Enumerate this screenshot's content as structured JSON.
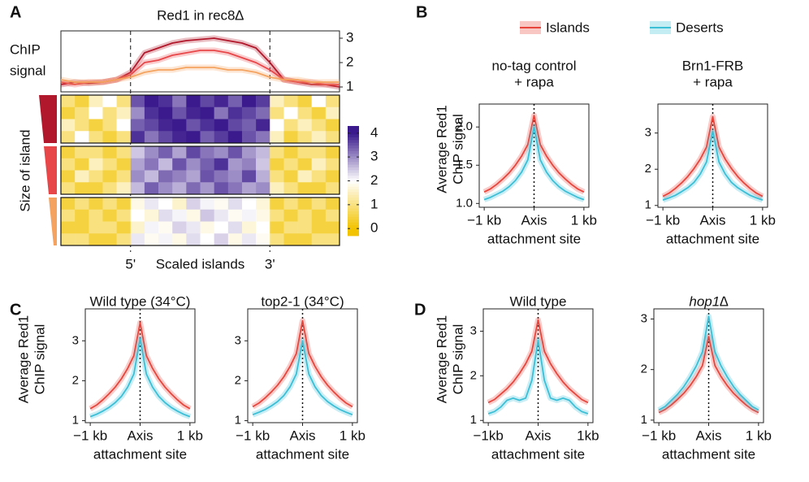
{
  "panel_labels": [
    "A",
    "B",
    "C",
    "D"
  ],
  "chart_data": [
    {
      "type": "line",
      "title": "Red1 in rec8∆",
      "ylabel": [
        "ChIP",
        "signal"
      ],
      "ylim": [
        0.8,
        3.3
      ],
      "yticks": [
        1,
        2,
        3
      ],
      "y_axis_side": "right",
      "series": [
        {
          "color": "#b2182b",
          "values": [
            1.1,
            1.2,
            1.15,
            1.2,
            1.3,
            1.6,
            2.4,
            2.6,
            2.8,
            2.9,
            2.95,
            3.0,
            2.9,
            2.8,
            2.6,
            2.0,
            1.3,
            1.2,
            1.1,
            1.1,
            1.0
          ]
        },
        {
          "color": "#e8474a",
          "values": [
            1.2,
            1.1,
            1.2,
            1.2,
            1.3,
            1.5,
            2.0,
            2.1,
            2.3,
            2.4,
            2.5,
            2.5,
            2.4,
            2.2,
            2.0,
            1.7,
            1.3,
            1.2,
            1.2,
            1.1,
            1.1
          ]
        },
        {
          "color": "#f4a460",
          "values": [
            1.3,
            1.2,
            1.2,
            1.2,
            1.3,
            1.4,
            1.6,
            1.7,
            1.7,
            1.8,
            1.8,
            1.8,
            1.7,
            1.7,
            1.6,
            1.4,
            1.3,
            1.3,
            1.2,
            1.2,
            1.2
          ]
        }
      ]
    },
    {
      "type": "heatmap",
      "ylabel": "Size of island",
      "x_labels": [
        "5'",
        "Scaled islands",
        "3'"
      ],
      "zlim": [
        -0.3,
        4.3
      ],
      "zticks": [
        0,
        1,
        2,
        3,
        4
      ],
      "color_stops": [
        {
          "value": 0,
          "color": "#f2c300"
        },
        {
          "value": 2,
          "color": "#ffffff"
        },
        {
          "value": 4,
          "color": "#3a1a8c"
        }
      ],
      "values": [
        [
          [
            1,
            0.5,
            1.5,
            2,
            1,
            3.5,
            4,
            3.8,
            3.2,
            4,
            3.6,
            3.9,
            3.4,
            4,
            3.7,
            1.5,
            1,
            0.5,
            2,
            1
          ],
          [
            0.5,
            1,
            2,
            1,
            1.5,
            3,
            3.8,
            4,
            3.5,
            3.9,
            4,
            3.2,
            3.8,
            3.6,
            3.3,
            1,
            2,
            1,
            0.5,
            1.5
          ],
          [
            1.5,
            1,
            0.5,
            1,
            2,
            3.4,
            3.6,
            3.9,
            4,
            3.5,
            3.8,
            4,
            3.6,
            3.4,
            3.9,
            2,
            1,
            1.5,
            1,
            0.5
          ],
          [
            1,
            2,
            1,
            0.5,
            1,
            3.8,
            3.2,
            3.6,
            3.9,
            4,
            3.4,
            3.7,
            4,
            3.5,
            3.2,
            1.5,
            0.5,
            1,
            1.5,
            1
          ]
        ],
        [
          [
            0.5,
            1,
            1,
            0.5,
            1,
            2.5,
            3,
            3.4,
            2.8,
            3.6,
            3.2,
            3,
            3.5,
            2.9,
            2.6,
            1,
            0.5,
            1,
            1,
            0.5
          ],
          [
            1,
            0.5,
            1.5,
            1,
            0.5,
            2.8,
            3.2,
            2.6,
            3.5,
            3,
            3.4,
            3.8,
            2.9,
            3.1,
            2.5,
            0.5,
            1,
            0.5,
            1.5,
            1
          ],
          [
            0.5,
            1.5,
            1,
            0.5,
            1,
            3,
            2.6,
            3.3,
            3.1,
            2.8,
            3.5,
            3.2,
            3,
            3.6,
            2.7,
            1,
            0.5,
            1.5,
            1,
            0.5
          ],
          [
            1,
            0.5,
            0.5,
            1,
            1.5,
            2.6,
            3.4,
            3,
            2.7,
            3.3,
            2.9,
            3.5,
            3.2,
            2.8,
            3,
            1.5,
            1,
            0.5,
            0.5,
            1
          ]
        ],
        [
          [
            0.5,
            1,
            0.5,
            1,
            0.5,
            1.8,
            2.2,
            2,
            1.6,
            2.4,
            2.1,
            1.9,
            2.3,
            2,
            1.7,
            0.5,
            1,
            0.5,
            1,
            0.5
          ],
          [
            1,
            0.5,
            1,
            0.5,
            1,
            2,
            1.7,
            2.3,
            2.1,
            1.8,
            2.5,
            2.2,
            1.9,
            2.1,
            1.8,
            1,
            0.5,
            1,
            0.5,
            1
          ],
          [
            0.5,
            0.5,
            1,
            1,
            0.5,
            1.6,
            2.1,
            1.9,
            2.4,
            2.2,
            1.8,
            2,
            2.3,
            1.7,
            2,
            0.5,
            1,
            1,
            0.5,
            0.5
          ],
          [
            1,
            1,
            0.5,
            0.5,
            1,
            2.2,
            1.9,
            2.1,
            1.8,
            2.3,
            2,
            2.4,
            1.8,
            2.2,
            1.9,
            1,
            0.5,
            0.5,
            1,
            1
          ]
        ]
      ]
    },
    {
      "type": "line",
      "title": [
        "no-tag control",
        "+ rapa"
      ],
      "ylabel": [
        "Average Red1",
        "ChIP signal"
      ],
      "xlabel": "attachment site",
      "x": [
        -1,
        -0.875,
        -0.75,
        -0.625,
        -0.5,
        -0.375,
        -0.25,
        -0.125,
        0,
        0.125,
        0.25,
        0.375,
        0.5,
        0.625,
        0.75,
        0.875,
        1
      ],
      "xlim": [
        -1.1,
        1.1
      ],
      "xticks": [
        {
          "value": -1,
          "label": "−1 kb"
        },
        {
          "value": 0,
          "label": "Axis"
        },
        {
          "value": 1,
          "label": "1 kb"
        }
      ],
      "ylim": [
        0.95,
        2.3
      ],
      "yticks": [
        {
          "value": 1,
          "label": "1.0"
        },
        {
          "value": 1.5,
          "label": "1.5"
        },
        {
          "value": 2,
          "label": "2.0"
        }
      ],
      "series": [
        {
          "name": "Islands",
          "color": "#e8453c",
          "values": [
            1.15,
            1.19,
            1.25,
            1.32,
            1.4,
            1.5,
            1.62,
            1.77,
            2.15,
            1.77,
            1.62,
            1.5,
            1.4,
            1.32,
            1.25,
            1.19,
            1.15
          ]
        },
        {
          "name": "Deserts",
          "color": "#3bbfd6",
          "values": [
            1.05,
            1.08,
            1.12,
            1.16,
            1.22,
            1.3,
            1.41,
            1.57,
            2.0,
            1.57,
            1.41,
            1.3,
            1.22,
            1.16,
            1.12,
            1.08,
            1.05
          ]
        }
      ]
    },
    {
      "type": "line",
      "title": [
        "Brn1-FRB",
        "+ rapa"
      ],
      "xlabel": "attachment site",
      "x": [
        -1,
        -0.875,
        -0.75,
        -0.625,
        -0.5,
        -0.375,
        -0.25,
        -0.125,
        0,
        0.125,
        0.25,
        0.375,
        0.5,
        0.625,
        0.75,
        0.875,
        1
      ],
      "xlim": [
        -1.1,
        1.1
      ],
      "xticks": [
        {
          "value": -1,
          "label": "−1 kb"
        },
        {
          "value": 0,
          "label": "Axis"
        },
        {
          "value": 1,
          "label": "1 kb"
        }
      ],
      "ylim": [
        0.95,
        3.8
      ],
      "yticks": [
        1,
        2,
        3
      ],
      "series": [
        {
          "name": "Islands",
          "color": "#e8453c",
          "values": [
            1.25,
            1.34,
            1.47,
            1.62,
            1.8,
            2.02,
            2.28,
            2.61,
            3.45,
            2.61,
            2.28,
            2.02,
            1.8,
            1.62,
            1.47,
            1.34,
            1.25
          ]
        },
        {
          "name": "Deserts",
          "color": "#3bbfd6",
          "values": [
            1.15,
            1.21,
            1.28,
            1.38,
            1.49,
            1.64,
            1.87,
            2.2,
            3.05,
            2.2,
            1.87,
            1.64,
            1.49,
            1.38,
            1.28,
            1.21,
            1.15
          ]
        }
      ]
    },
    {
      "type": "line",
      "title": [
        "Wild type (34°C)"
      ],
      "ylabel": [
        "Average Red1",
        "ChIP signal"
      ],
      "xlabel": "attachment site",
      "x": [
        -1,
        -0.875,
        -0.75,
        -0.625,
        -0.5,
        -0.375,
        -0.25,
        -0.125,
        0,
        0.125,
        0.25,
        0.375,
        0.5,
        0.625,
        0.75,
        0.875,
        1
      ],
      "xlim": [
        -1.1,
        1.1
      ],
      "xticks": [
        {
          "value": -1,
          "label": "−1 kb"
        },
        {
          "value": 0,
          "label": "Axis"
        },
        {
          "value": 1,
          "label": "1 kb"
        }
      ],
      "ylim": [
        0.95,
        3.8
      ],
      "yticks": [
        1,
        2,
        3
      ],
      "series": [
        {
          "name": "Islands",
          "color": "#e8453c",
          "values": [
            1.3,
            1.39,
            1.52,
            1.67,
            1.84,
            2.05,
            2.31,
            2.63,
            3.45,
            2.63,
            2.31,
            2.05,
            1.84,
            1.67,
            1.52,
            1.39,
            1.3
          ]
        },
        {
          "name": "Deserts",
          "color": "#3bbfd6",
          "values": [
            1.1,
            1.16,
            1.24,
            1.33,
            1.45,
            1.61,
            1.84,
            2.17,
            3.05,
            2.17,
            1.84,
            1.61,
            1.45,
            1.33,
            1.24,
            1.16,
            1.1
          ]
        }
      ]
    },
    {
      "type": "line",
      "title": [
        "top2-1 (34°C)"
      ],
      "xlabel": "attachment site",
      "x": [
        -1,
        -0.875,
        -0.75,
        -0.625,
        -0.5,
        -0.375,
        -0.25,
        -0.125,
        0,
        0.125,
        0.25,
        0.375,
        0.5,
        0.625,
        0.75,
        0.875,
        1
      ],
      "xlim": [
        -1.1,
        1.1
      ],
      "xticks": [
        {
          "value": -1,
          "label": "−1 kb"
        },
        {
          "value": 0,
          "label": "Axis"
        },
        {
          "value": 1,
          "label": "1 kb"
        }
      ],
      "ylim": [
        0.95,
        3.8
      ],
      "yticks": [
        1,
        2,
        3
      ],
      "series": [
        {
          "name": "Islands",
          "color": "#e8453c",
          "values": [
            1.35,
            1.44,
            1.57,
            1.72,
            1.89,
            2.1,
            2.36,
            2.68,
            3.5,
            2.68,
            2.36,
            2.1,
            1.89,
            1.72,
            1.57,
            1.44,
            1.35
          ]
        },
        {
          "name": "Deserts",
          "color": "#3bbfd6",
          "values": [
            1.15,
            1.21,
            1.28,
            1.37,
            1.48,
            1.63,
            1.85,
            2.17,
            3.0,
            2.17,
            1.85,
            1.63,
            1.48,
            1.37,
            1.28,
            1.21,
            1.15
          ]
        }
      ]
    },
    {
      "type": "line",
      "title": [
        "Wild type"
      ],
      "ylabel": [
        "Average Red1",
        "ChIP signal"
      ],
      "xlabel": "attachment site",
      "x": [
        -1,
        -0.875,
        -0.75,
        -0.625,
        -0.5,
        -0.375,
        -0.25,
        -0.125,
        0,
        0.125,
        0.25,
        0.375,
        0.5,
        0.625,
        0.75,
        0.875,
        1
      ],
      "xlim": [
        -1.1,
        1.1
      ],
      "xticks": [
        {
          "value": -1,
          "label": "−1kb"
        },
        {
          "value": 0,
          "label": "Axis"
        },
        {
          "value": 1,
          "label": "1kb"
        }
      ],
      "ylim": [
        0.95,
        3.5
      ],
      "yticks": [
        1,
        2,
        3
      ],
      "series": [
        {
          "name": "Islands",
          "color": "#e8453c",
          "values": [
            1.4,
            1.47,
            1.59,
            1.71,
            1.86,
            2.05,
            2.27,
            2.55,
            3.25,
            2.55,
            2.27,
            2.05,
            1.86,
            1.71,
            1.59,
            1.47,
            1.4
          ]
        },
        {
          "name": "Deserts",
          "color": "#3bbfd6",
          "values": [
            1.15,
            1.2,
            1.3,
            1.45,
            1.5,
            1.45,
            1.5,
            1.9,
            2.8,
            1.9,
            1.5,
            1.45,
            1.5,
            1.45,
            1.3,
            1.2,
            1.15
          ]
        }
      ]
    },
    {
      "type": "line",
      "title": [
        "hop1∆"
      ],
      "italic": true,
      "xlabel": "attachment site",
      "x": [
        -1,
        -0.875,
        -0.75,
        -0.625,
        -0.5,
        -0.375,
        -0.25,
        -0.125,
        0,
        0.125,
        0.25,
        0.375,
        0.5,
        0.625,
        0.75,
        0.875,
        1
      ],
      "xlim": [
        -1.1,
        1.1
      ],
      "xticks": [
        {
          "value": -1,
          "label": "−1 kb"
        },
        {
          "value": 0,
          "label": "Axis"
        },
        {
          "value": 1,
          "label": "1 kb"
        }
      ],
      "ylim": [
        0.95,
        3.2
      ],
      "yticks": [
        1,
        2,
        3
      ],
      "series": [
        {
          "name": "Islands",
          "color": "#e8453c",
          "values": [
            1.15,
            1.21,
            1.3,
            1.41,
            1.53,
            1.68,
            1.86,
            2.08,
            2.65,
            2.08,
            1.86,
            1.68,
            1.53,
            1.41,
            1.3,
            1.21,
            1.15
          ]
        },
        {
          "name": "Deserts",
          "color": "#3bbfd6",
          "values": [
            1.2,
            1.27,
            1.39,
            1.51,
            1.66,
            1.85,
            2.07,
            2.35,
            3.05,
            2.35,
            2.07,
            1.85,
            1.66,
            1.51,
            1.39,
            1.27,
            1.2
          ]
        }
      ]
    }
  ]
}
